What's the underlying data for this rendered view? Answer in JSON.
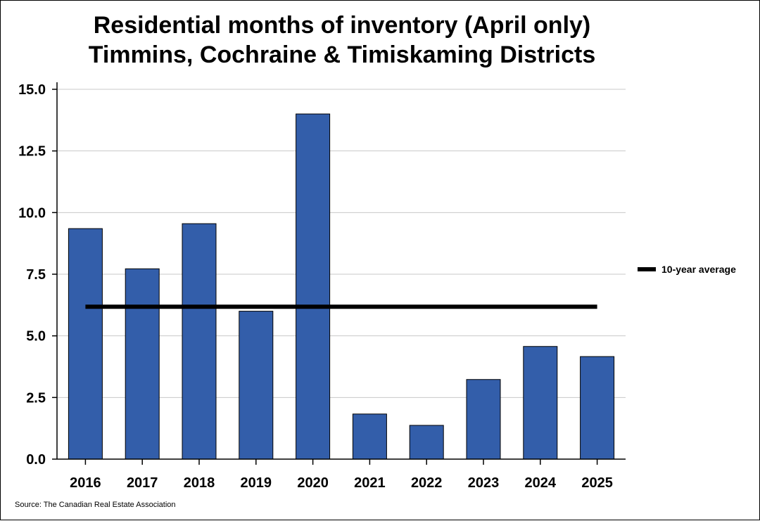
{
  "chart_data": {
    "type": "bar",
    "title": "Residential months of inventory (April only)",
    "subtitle": "Timmins, Cochraine & Timiskaming Districts",
    "categories": [
      "2016",
      "2017",
      "2018",
      "2019",
      "2020",
      "2021",
      "2022",
      "2023",
      "2024",
      "2025"
    ],
    "series": [
      {
        "values": [
          9.35,
          7.72,
          9.55,
          6.0,
          14.0,
          1.83,
          1.37,
          3.23,
          4.57,
          4.16
        ],
        "color": "#335EAA"
      }
    ],
    "reference_line": {
      "name": "10-year average",
      "value": 6.18,
      "color": "#000000"
    },
    "ylim": [
      0,
      15
    ],
    "yticks": [
      "0.0",
      "2.5",
      "5.0",
      "7.5",
      "10.0",
      "12.5",
      "15.0"
    ],
    "ytick_values": [
      0,
      2.5,
      5,
      7.5,
      10,
      12.5,
      15
    ],
    "grid": true,
    "legend_position": "right",
    "source": "Source: The Canadian Real Estate Association"
  }
}
